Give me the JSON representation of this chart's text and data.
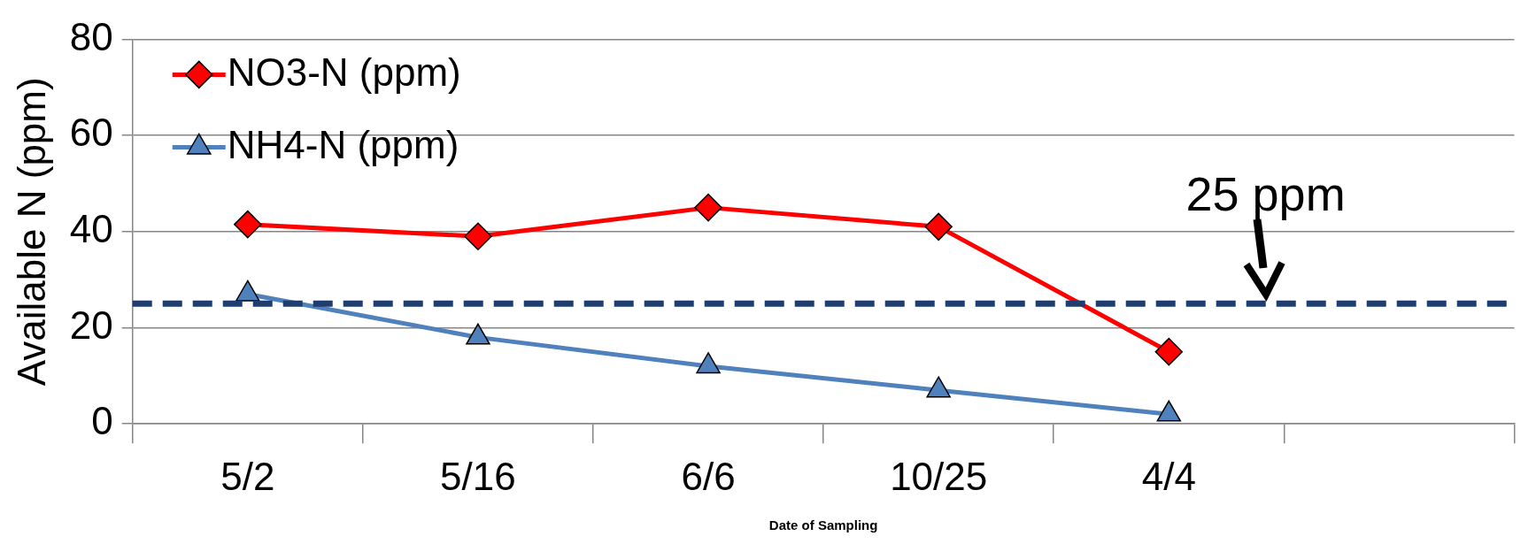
{
  "chart_data": {
    "type": "line",
    "ylabel": "Available N (ppm)",
    "xlabel": "Date of Sampling",
    "categories": [
      "5/2",
      "5/16",
      "6/6",
      "10/25",
      "4/4",
      null
    ],
    "series": [
      {
        "name": "NO3-N (ppm)",
        "color": "#ff0000",
        "marker": "diamond",
        "values": [
          41.5,
          39,
          45,
          41,
          15,
          null
        ]
      },
      {
        "name": "NH4-N (ppm)",
        "color": "#4f81bd",
        "marker": "triangle",
        "values": [
          27,
          18,
          12,
          7,
          2,
          null
        ]
      }
    ],
    "ylim": [
      0,
      80
    ],
    "yticks": [
      0,
      20,
      40,
      60,
      80
    ],
    "grid": "y",
    "legend": "top left",
    "ref_lines": [
      {
        "axis": "y",
        "value": 25,
        "label": "25 ppm",
        "color": "#1f3d6e",
        "line_style": "dashed"
      }
    ]
  }
}
